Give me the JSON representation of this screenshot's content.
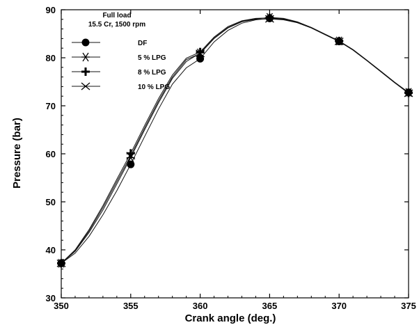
{
  "chart_data": {
    "type": "line",
    "title": "",
    "xlabel": "Crank angle (deg.)",
    "ylabel": "Pressure (bar)",
    "xlim": [
      350,
      375
    ],
    "ylim": [
      30,
      90
    ],
    "xticks": [
      350,
      355,
      360,
      365,
      370,
      375
    ],
    "yticks": [
      30,
      40,
      50,
      60,
      70,
      80,
      90
    ],
    "grid": false,
    "legend_position": "top-left",
    "annotations": [
      "Full load",
      "15.5 Cr, 1500 rpm"
    ],
    "series": [
      {
        "name": "DF",
        "marker": "filled-circle",
        "x": [
          350,
          351,
          352,
          353,
          354,
          355,
          356,
          357,
          358,
          359,
          360,
          361,
          362,
          363,
          364,
          365,
          366,
          367,
          368,
          369,
          370,
          371,
          372,
          373,
          374,
          375
        ],
        "y": [
          37.2,
          39.3,
          42.8,
          47.3,
          52.3,
          57.8,
          63.6,
          69.3,
          74.5,
          77.9,
          79.8,
          83.3,
          85.7,
          87.2,
          87.9,
          88.2,
          88.0,
          87.3,
          86.2,
          84.8,
          83.4,
          81.6,
          79.4,
          77.1,
          74.8,
          72.8
        ]
      },
      {
        "name": "5 % LPG",
        "marker": "asterisk",
        "x": [
          350,
          351,
          352,
          353,
          354,
          355,
          356,
          357,
          358,
          359,
          360,
          361,
          362,
          363,
          364,
          365,
          366,
          367,
          368,
          369,
          370,
          371,
          372,
          373,
          374,
          375
        ],
        "y": [
          37.2,
          39.7,
          43.6,
          48.3,
          53.7,
          59.2,
          65.0,
          70.6,
          75.7,
          79.2,
          81.0,
          84.1,
          86.3,
          87.6,
          88.1,
          88.4,
          88.2,
          87.5,
          86.3,
          84.9,
          83.5,
          81.7,
          79.5,
          77.2,
          74.9,
          72.8
        ]
      },
      {
        "name": "8 % LPG",
        "marker": "plus",
        "x": [
          350,
          351,
          352,
          353,
          354,
          355,
          356,
          357,
          358,
          359,
          360,
          361,
          362,
          363,
          364,
          365,
          366,
          367,
          368,
          369,
          370,
          371,
          372,
          373,
          374,
          375
        ],
        "y": [
          37.2,
          40.0,
          44.2,
          49.2,
          54.7,
          60.1,
          65.9,
          71.5,
          76.4,
          79.9,
          81.2,
          84.3,
          86.5,
          87.7,
          88.2,
          88.3,
          88.1,
          87.4,
          86.3,
          84.9,
          83.5,
          81.7,
          79.5,
          77.2,
          74.9,
          72.7
        ]
      },
      {
        "name": "10 % LPG",
        "marker": "cross",
        "x": [
          350,
          351,
          352,
          353,
          354,
          355,
          356,
          357,
          358,
          359,
          360,
          361,
          362,
          363,
          364,
          365,
          366,
          367,
          368,
          369,
          370,
          371,
          372,
          373,
          374,
          375
        ],
        "y": [
          37.2,
          39.9,
          43.9,
          48.8,
          54.2,
          59.6,
          65.4,
          71.0,
          76.0,
          79.6,
          80.9,
          84.0,
          86.2,
          87.5,
          88.0,
          88.1,
          87.9,
          87.3,
          86.2,
          84.8,
          83.4,
          81.6,
          79.4,
          77.1,
          74.8,
          72.6
        ]
      }
    ]
  }
}
